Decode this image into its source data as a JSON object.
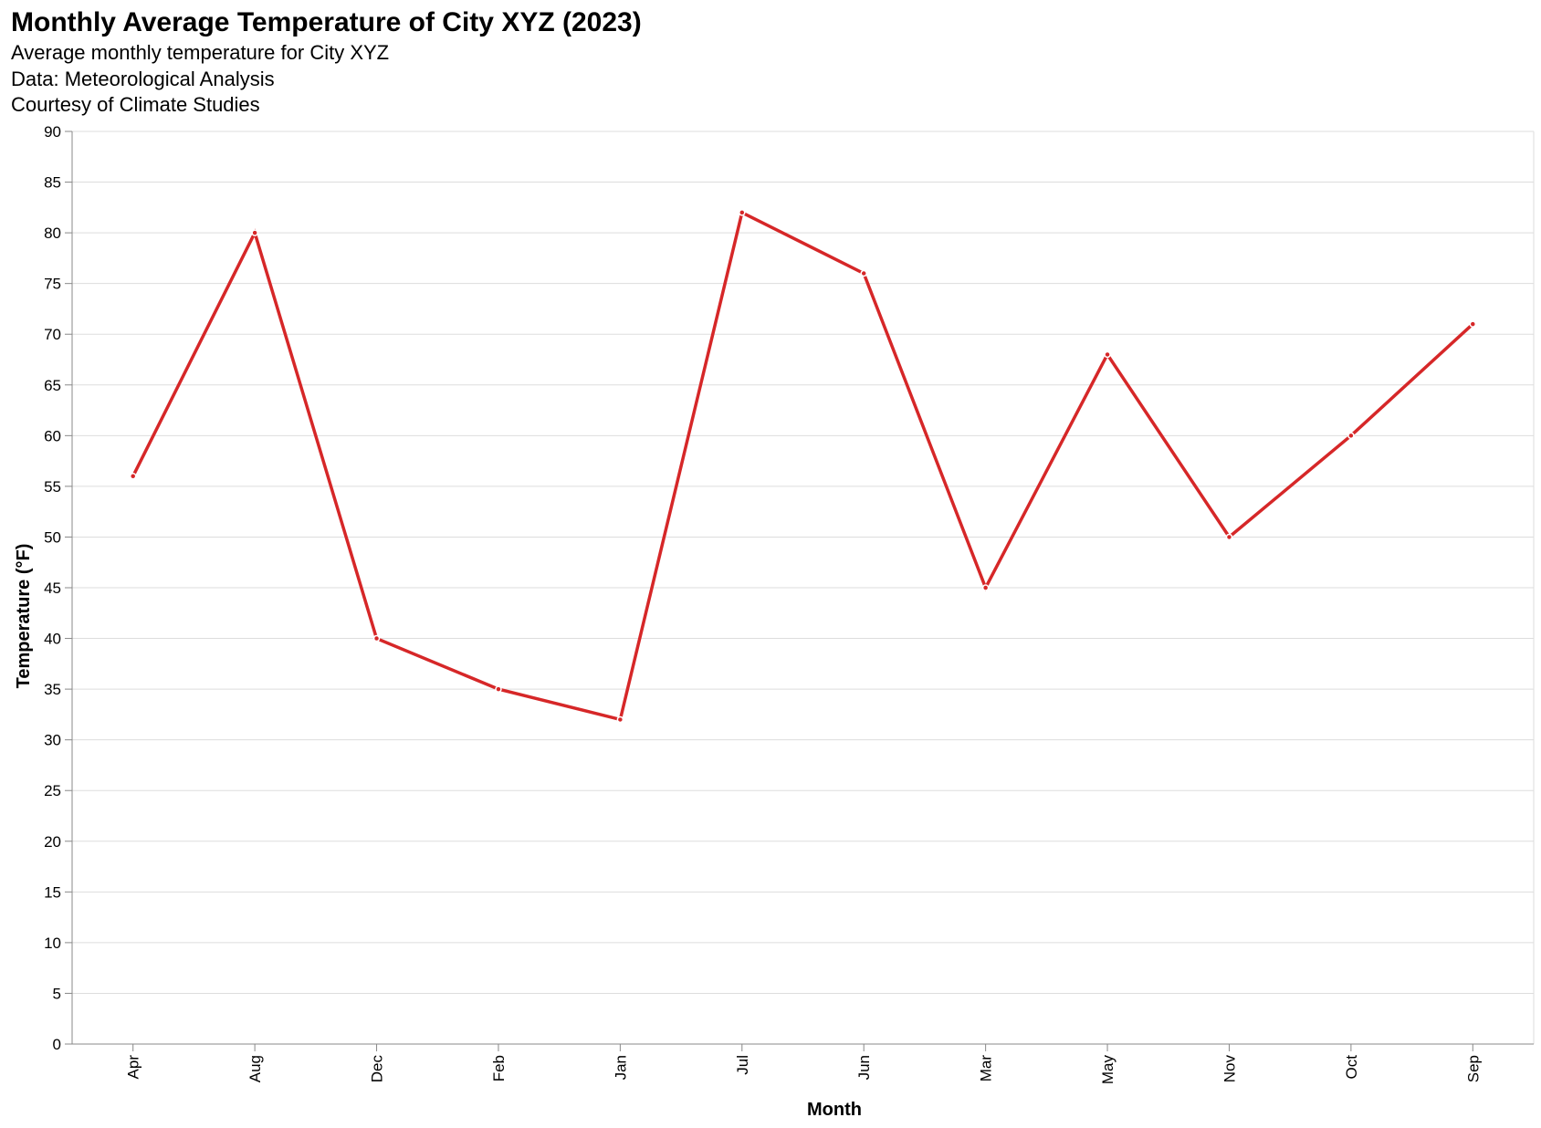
{
  "chart_data": {
    "type": "line",
    "title": "Monthly Average Temperature of City XYZ (2023)",
    "subtitle": [
      "Average monthly temperature for City XYZ",
      "Data: Meteorological Analysis",
      "Courtesy of Climate Studies"
    ],
    "xlabel": "Month",
    "ylabel": "Temperature (°F)",
    "categories": [
      "Apr",
      "Aug",
      "Dec",
      "Feb",
      "Jan",
      "Jul",
      "Jun",
      "Mar",
      "May",
      "Nov",
      "Oct",
      "Sep"
    ],
    "series": [
      {
        "values": [
          56,
          80,
          40,
          35,
          32,
          82,
          76,
          45,
          68,
          50,
          60,
          71
        ]
      }
    ],
    "ylim": [
      0,
      90
    ],
    "yticks": [
      0,
      5,
      10,
      15,
      20,
      25,
      30,
      35,
      40,
      45,
      50,
      55,
      60,
      65,
      70,
      75,
      80,
      85,
      90
    ],
    "grid": true,
    "legend": "none",
    "color": "#d62728"
  }
}
